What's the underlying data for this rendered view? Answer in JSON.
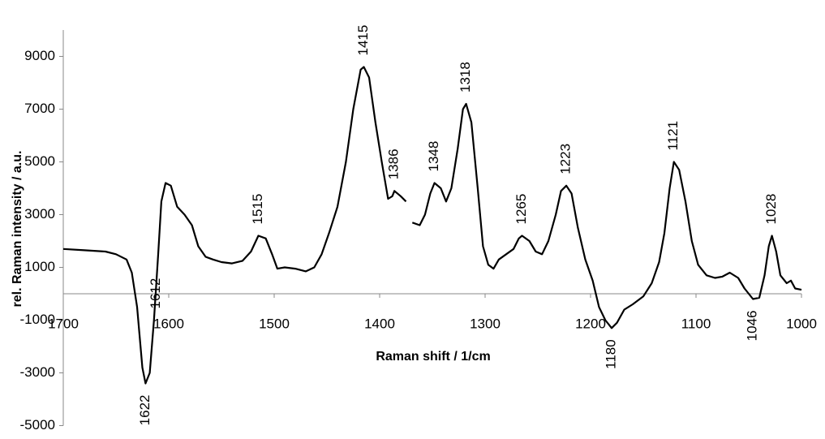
{
  "chart_data": {
    "type": "line",
    "x_label": "Raman shift / 1/cm",
    "y_label": "rel. Raman intensity / a.u.",
    "xlim": [
      1700,
      1000
    ],
    "xticks": [
      1700,
      1600,
      1500,
      1400,
      1300,
      1200,
      1100,
      1000
    ],
    "ylim": [
      -5000,
      10000
    ],
    "yticks": [
      -5000,
      -3000,
      -1000,
      1000,
      3000,
      5000,
      7000,
      9000
    ],
    "x": [
      1700,
      1680,
      1660,
      1650,
      1640,
      1635,
      1630,
      1625,
      1622,
      1618,
      1614,
      1610,
      1607,
      1603,
      1598,
      1592,
      1585,
      1578,
      1572,
      1565,
      1558,
      1550,
      1540,
      1530,
      1522,
      1515,
      1508,
      1502,
      1497,
      1490,
      1480,
      1470,
      1462,
      1455,
      1448,
      1440,
      1432,
      1425,
      1418,
      1415,
      1410,
      1404,
      1398,
      1392,
      1388,
      1386,
      1380,
      1375,
      1372,
      1369,
      1362,
      1357,
      1352,
      1348,
      1342,
      1337,
      1332,
      1326,
      1321,
      1318,
      1313,
      1307,
      1302,
      1297,
      1292,
      1287,
      1280,
      1273,
      1268,
      1265,
      1258,
      1252,
      1246,
      1240,
      1233,
      1228,
      1223,
      1218,
      1212,
      1205,
      1198,
      1192,
      1186,
      1180,
      1175,
      1168,
      1160,
      1150,
      1142,
      1135,
      1130,
      1125,
      1121,
      1116,
      1110,
      1104,
      1098,
      1090,
      1082,
      1075,
      1068,
      1060,
      1054,
      1046,
      1040,
      1035,
      1031,
      1028,
      1024,
      1020,
      1014,
      1010,
      1006,
      1000
    ],
    "series": [
      {
        "color": "#000000",
        "values": [
          1700,
          1650,
          1600,
          1500,
          1300,
          800,
          -500,
          -2800,
          -3400,
          -3000,
          -1000,
          1500,
          3500,
          4200,
          4100,
          3300,
          3000,
          2600,
          1800,
          1400,
          1300,
          1200,
          1150,
          1250,
          1600,
          2200,
          2100,
          1500,
          950,
          1000,
          950,
          850,
          1000,
          1500,
          2300,
          3300,
          5000,
          7000,
          8500,
          8600,
          8200,
          6500,
          5000,
          3600,
          3700,
          3900,
          3700,
          3500,
          null,
          2700,
          2600,
          3000,
          3800,
          4200,
          4000,
          3500,
          4000,
          5500,
          7000,
          7200,
          6500,
          4000,
          1800,
          1100,
          950,
          1300,
          1500,
          1700,
          2100,
          2200,
          2000,
          1600,
          1500,
          2000,
          3000,
          3900,
          4100,
          3800,
          2500,
          1300,
          500,
          -500,
          -1000,
          -1300,
          -1100,
          -600,
          -400,
          -100,
          400,
          1200,
          2300,
          4000,
          5000,
          4700,
          3500,
          2000,
          1100,
          700,
          600,
          650,
          800,
          600,
          200,
          -200,
          -150,
          700,
          1800,
          2200,
          1600,
          700,
          400,
          500,
          200,
          150
        ]
      }
    ],
    "annotations": [
      {
        "label": "1622",
        "x": 1622
      },
      {
        "label": "1612",
        "x": 1612
      },
      {
        "label": "1515",
        "x": 1515
      },
      {
        "label": "1415",
        "x": 1415
      },
      {
        "label": "1386",
        "x": 1386
      },
      {
        "label": "1348",
        "x": 1348
      },
      {
        "label": "1318",
        "x": 1318
      },
      {
        "label": "1265",
        "x": 1265
      },
      {
        "label": "1223",
        "x": 1223
      },
      {
        "label": "1180",
        "x": 1180
      },
      {
        "label": "1121",
        "x": 1121
      },
      {
        "label": "1046",
        "x": 1046
      },
      {
        "label": "1028",
        "x": 1028
      }
    ]
  }
}
